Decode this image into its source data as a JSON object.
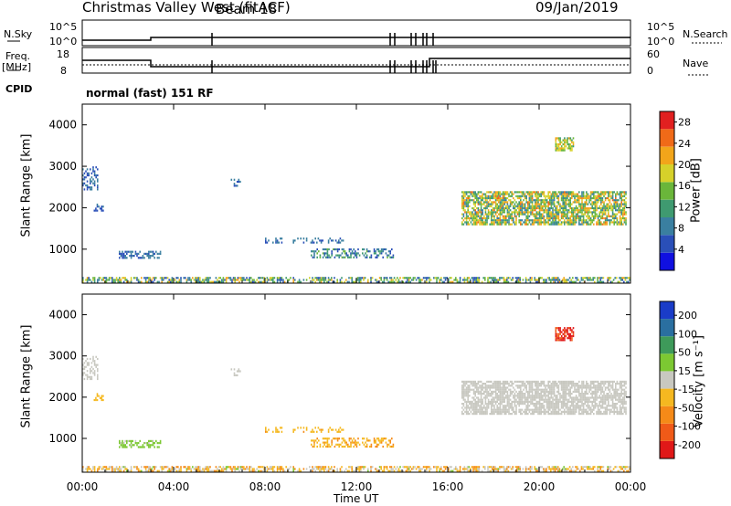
{
  "header": {
    "title_left": "Christmas Valley West (fitACF)",
    "title_mid": "Beam 18",
    "title_right": "09/Jan/2019"
  },
  "strip_labels": {
    "nsky": "N.Sky",
    "nsearch": "N.Search",
    "freq": "Freq.",
    "mhz": "[MHz]",
    "nave": "Nave",
    "cpid": "CPID",
    "mode": "normal (fast) 151 RF",
    "noise_ticks_left": [
      "10^5",
      "10^0"
    ],
    "noise_ticks_right": [
      "10^5",
      "10^0"
    ],
    "freq_ticks_left": [
      "18",
      "8"
    ],
    "nave_ticks_right": [
      "60",
      "0"
    ]
  },
  "colors": {
    "power": [
      "#1010e0",
      "#2a4fb8",
      "#3a7fa0",
      "#3f9a70",
      "#6ab63a",
      "#d6d12a",
      "#f2a51a",
      "#f06a18",
      "#e12020"
    ],
    "velocity": [
      "#e01818",
      "#f05a18",
      "#f58a18",
      "#f5b820",
      "#c8c8c0",
      "#7cc832",
      "#3e9a5a",
      "#2a6fa0",
      "#1a3cc8"
    ],
    "ground": "#b0b0a8"
  },
  "chart_data": [
    {
      "type": "heatmap",
      "name": "power-panel",
      "xlabel": "",
      "ylabel": "Slant Range [km]",
      "xlim": [
        0,
        24
      ],
      "ylim": [
        180,
        4500
      ],
      "yticks": [
        1000,
        2000,
        3000,
        4000
      ],
      "xticks": [
        "00:00",
        "04:00",
        "08:00",
        "12:00",
        "16:00",
        "20:00",
        "00:00"
      ],
      "colorbar": {
        "label": "Power [dB]",
        "ticks": [
          4,
          8,
          12,
          16,
          20,
          24,
          28
        ],
        "range": [
          0,
          30
        ]
      },
      "regions": [
        {
          "t0": 0.0,
          "t1": 24.0,
          "r0": 200,
          "r1": 330,
          "v0": 4,
          "v1": 22,
          "density": 0.55
        },
        {
          "t0": 0.0,
          "t1": 0.7,
          "r0": 2450,
          "r1": 3000,
          "v0": 4,
          "v1": 10,
          "density": 0.35
        },
        {
          "t0": 0.5,
          "t1": 0.9,
          "r0": 1950,
          "r1": 2100,
          "v0": 4,
          "v1": 8,
          "density": 0.6
        },
        {
          "t0": 1.6,
          "t1": 3.4,
          "r0": 780,
          "r1": 960,
          "v0": 4,
          "v1": 10,
          "density": 0.55
        },
        {
          "t0": 6.5,
          "t1": 7.0,
          "r0": 2550,
          "r1": 2700,
          "v0": 4,
          "v1": 10,
          "density": 0.4
        },
        {
          "t0": 8.0,
          "t1": 11.5,
          "r0": 1180,
          "r1": 1280,
          "v0": 4,
          "v1": 10,
          "density": 0.4
        },
        {
          "t0": 10.0,
          "t1": 13.6,
          "r0": 820,
          "r1": 1020,
          "v0": 4,
          "v1": 14,
          "density": 0.45
        },
        {
          "t0": 16.6,
          "t1": 23.8,
          "r0": 1600,
          "r1": 2400,
          "v0": 8,
          "v1": 24,
          "density": 0.75
        },
        {
          "t0": 20.7,
          "t1": 21.5,
          "r0": 3400,
          "r1": 3700,
          "v0": 12,
          "v1": 22,
          "density": 0.7
        }
      ]
    },
    {
      "type": "heatmap",
      "name": "velocity-panel",
      "xlabel": "Time UT",
      "ylabel": "Slant Range [km]",
      "xlim": [
        0,
        24
      ],
      "ylim": [
        180,
        4500
      ],
      "yticks": [
        1000,
        2000,
        3000,
        4000
      ],
      "xticks": [
        "00:00",
        "04:00",
        "08:00",
        "12:00",
        "16:00",
        "20:00",
        "00:00"
      ],
      "colorbar": {
        "label": "Velocity [m s⁻¹]",
        "ticks": [
          "200",
          "100",
          "50",
          "15",
          "-15",
          "-50",
          "-100",
          "-200"
        ],
        "range": [
          -250,
          250
        ]
      },
      "regions": [
        {
          "t0": 0.0,
          "t1": 24.0,
          "r0": 200,
          "r1": 330,
          "v0": -120,
          "v1": 40,
          "density": 0.55
        },
        {
          "t0": 0.0,
          "t1": 0.7,
          "r0": 2450,
          "r1": 3000,
          "v0": -20,
          "v1": 10,
          "density": 0.35
        },
        {
          "t0": 0.5,
          "t1": 0.9,
          "r0": 1950,
          "r1": 2100,
          "v0": -90,
          "v1": -40,
          "density": 0.6
        },
        {
          "t0": 1.6,
          "t1": 3.4,
          "r0": 780,
          "r1": 960,
          "v0": 20,
          "v1": 60,
          "density": 0.55
        },
        {
          "t0": 6.5,
          "t1": 7.0,
          "r0": 2550,
          "r1": 2700,
          "v0": -10,
          "v1": 10,
          "density": 0.4
        },
        {
          "t0": 8.0,
          "t1": 11.5,
          "r0": 1180,
          "r1": 1280,
          "v0": -90,
          "v1": -40,
          "density": 0.4
        },
        {
          "t0": 10.0,
          "t1": 13.6,
          "r0": 820,
          "r1": 1020,
          "v0": -100,
          "v1": -40,
          "density": 0.45
        },
        {
          "t0": 16.6,
          "t1": 23.8,
          "r0": 1600,
          "r1": 2400,
          "v0": -12,
          "v1": 12,
          "density": 0.75
        },
        {
          "t0": 20.7,
          "t1": 21.5,
          "r0": 3400,
          "r1": 3700,
          "v0": -230,
          "v1": -180,
          "density": 0.7
        }
      ]
    }
  ]
}
